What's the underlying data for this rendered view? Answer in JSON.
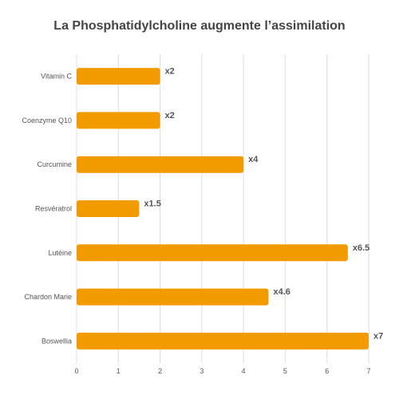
{
  "chart_data": {
    "type": "bar",
    "orientation": "horizontal",
    "title": "La Phosphatidylcholine augmente l’assimilation",
    "categories": [
      "Vitamin C",
      "Coenzyme Q10",
      "Curcumine",
      "Resvératrol",
      "Lutéine",
      "Chardon Marie",
      "Boswellia"
    ],
    "values": [
      2,
      2,
      4,
      1.5,
      6.5,
      4.6,
      7
    ],
    "data_labels": [
      "x2",
      "x2",
      "x4",
      "x1.5",
      "x6.5",
      "x4.6",
      "x7"
    ],
    "x_ticks": [
      "0",
      "1",
      "2",
      "3",
      "4",
      "5",
      "6",
      "7"
    ],
    "xlim": [
      0,
      7
    ],
    "grid": true,
    "bar_color": "#f29b00"
  }
}
